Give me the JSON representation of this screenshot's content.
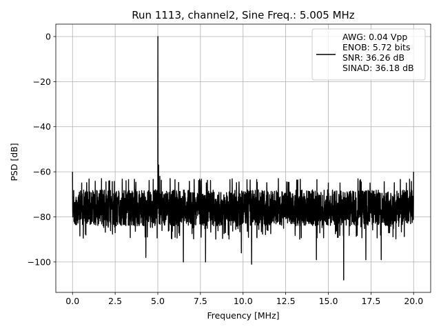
{
  "chart_data": {
    "type": "line",
    "title": "Run 1113, channel2, Sine Freq.: 5.005 MHz",
    "xlabel": "Frequency [MHz]",
    "ylabel": "PSD [dB]",
    "xlim": [
      -0.98,
      21.0
    ],
    "ylim": [
      -113.5,
      5.5
    ],
    "xticks": [
      0.0,
      2.5,
      5.0,
      7.5,
      10.0,
      12.5,
      15.0,
      17.5,
      20.0
    ],
    "xtick_labels": [
      "0.0",
      "2.5",
      "5.0",
      "7.5",
      "10.0",
      "12.5",
      "15.0",
      "17.5",
      "20.0"
    ],
    "yticks": [
      0,
      -20,
      -40,
      -60,
      -80,
      -100
    ],
    "ytick_labels": [
      "0",
      "−20",
      "−40",
      "−60",
      "−80",
      "−100"
    ],
    "grid": true,
    "legend_position": "top-right",
    "series": [
      {
        "name": "AWG: 0.04 Vpp\nENOB: 5.72 bits\nSNR: 36.26 dB\nSINAD: 36.18 dB",
        "legend_lines": [
          "AWG: 0.04 Vpp",
          "ENOB: 5.72 bits",
          "SNR: 36.26 dB",
          "SINAD: 36.18 dB"
        ],
        "color": "#000000",
        "noise_floor": {
          "mean_db": -76,
          "typical_range_db": [
            -90,
            -65
          ]
        },
        "features": [
          {
            "x": 0.0,
            "y": -60,
            "label": "DC edge spike"
          },
          {
            "x": 0.08,
            "y": -82
          },
          {
            "x": 4.3,
            "y": -98
          },
          {
            "x": 4.85,
            "y": -68
          },
          {
            "x": 5.005,
            "y": 0,
            "label": "signal peak"
          },
          {
            "x": 5.05,
            "y": -57
          },
          {
            "x": 5.12,
            "y": -62
          },
          {
            "x": 6.5,
            "y": -100
          },
          {
            "x": 7.8,
            "y": -100
          },
          {
            "x": 9.9,
            "y": -96
          },
          {
            "x": 10.5,
            "y": -101
          },
          {
            "x": 14.3,
            "y": -99
          },
          {
            "x": 15.0,
            "y": -65
          },
          {
            "x": 15.9,
            "y": -108
          },
          {
            "x": 17.2,
            "y": -99
          },
          {
            "x": 18.1,
            "y": -99
          },
          {
            "x": 20.0,
            "y": -60,
            "label": "Nyquist edge spike"
          }
        ]
      }
    ]
  }
}
